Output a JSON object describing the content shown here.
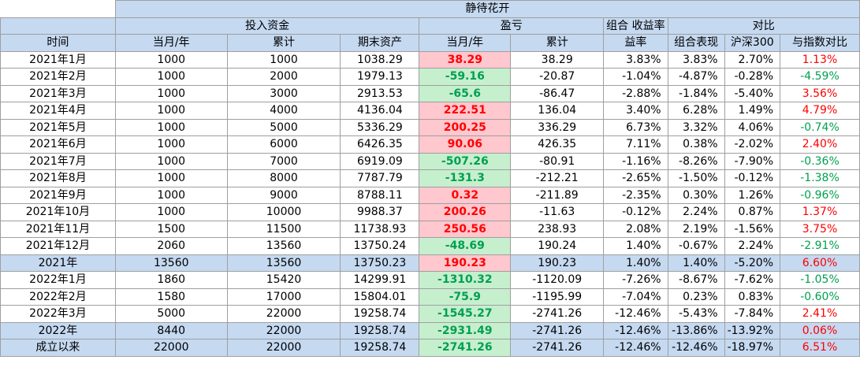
{
  "title": "静待花开",
  "group_headers": {
    "invest": "投入资金",
    "profit": "盈亏",
    "combo_return": "组合 收益率",
    "compare": "对比"
  },
  "columns": [
    "时间",
    "当月/年",
    "累计",
    "期末资产",
    "当月/年",
    "累计",
    "益率",
    "组合表现",
    "沪深300",
    "与指数对比"
  ],
  "colors": {
    "header_bg": "#c5d9f1",
    "pos_bg": "#ffc7ce",
    "neg_bg": "#c6efce",
    "red": "#ff0000",
    "green": "#00a050"
  },
  "rows": [
    {
      "time": "2021年1月",
      "inv_month": "1000",
      "inv_cum": "1000",
      "assets": "1038.29",
      "pl_month": "38.29",
      "pl_cum": "38.29",
      "ret": "3.83%",
      "perf": "3.83%",
      "hs300": "2.70%",
      "diff": "1.13%"
    },
    {
      "time": "2021年2月",
      "inv_month": "1000",
      "inv_cum": "2000",
      "assets": "1979.13",
      "pl_month": "-59.16",
      "pl_cum": "-20.87",
      "ret": "-1.04%",
      "perf": "-4.87%",
      "hs300": "-0.28%",
      "diff": "-4.59%"
    },
    {
      "time": "2021年3月",
      "inv_month": "1000",
      "inv_cum": "3000",
      "assets": "2913.53",
      "pl_month": "-65.6",
      "pl_cum": "-86.47",
      "ret": "-2.88%",
      "perf": "-1.84%",
      "hs300": "-5.40%",
      "diff": "3.56%"
    },
    {
      "time": "2021年4月",
      "inv_month": "1000",
      "inv_cum": "4000",
      "assets": "4136.04",
      "pl_month": "222.51",
      "pl_cum": "136.04",
      "ret": "3.40%",
      "perf": "6.28%",
      "hs300": "1.49%",
      "diff": "4.79%"
    },
    {
      "time": "2021年5月",
      "inv_month": "1000",
      "inv_cum": "5000",
      "assets": "5336.29",
      "pl_month": "200.25",
      "pl_cum": "336.29",
      "ret": "6.73%",
      "perf": "3.32%",
      "hs300": "4.06%",
      "diff": "-0.74%"
    },
    {
      "time": "2021年6月",
      "inv_month": "1000",
      "inv_cum": "6000",
      "assets": "6426.35",
      "pl_month": "90.06",
      "pl_cum": "426.35",
      "ret": "7.11%",
      "perf": "0.38%",
      "hs300": "-2.02%",
      "diff": "2.40%"
    },
    {
      "time": "2021年7月",
      "inv_month": "1000",
      "inv_cum": "7000",
      "assets": "6919.09",
      "pl_month": "-507.26",
      "pl_cum": "-80.91",
      "ret": "-1.16%",
      "perf": "-8.26%",
      "hs300": "-7.90%",
      "diff": "-0.36%"
    },
    {
      "time": "2021年8月",
      "inv_month": "1000",
      "inv_cum": "8000",
      "assets": "7787.79",
      "pl_month": "-131.3",
      "pl_cum": "-212.21",
      "ret": "-2.65%",
      "perf": "-1.50%",
      "hs300": "-0.12%",
      "diff": "-1.38%"
    },
    {
      "time": "2021年9月",
      "inv_month": "1000",
      "inv_cum": "9000",
      "assets": "8788.11",
      "pl_month": "0.32",
      "pl_cum": "-211.89",
      "ret": "-2.35%",
      "perf": "0.30%",
      "hs300": "1.26%",
      "diff": "-0.96%"
    },
    {
      "time": "2021年10月",
      "inv_month": "1000",
      "inv_cum": "10000",
      "assets": "9988.37",
      "pl_month": "200.26",
      "pl_cum": "-11.63",
      "ret": "-0.12%",
      "perf": "2.24%",
      "hs300": "0.87%",
      "diff": "1.37%"
    },
    {
      "time": "2021年11月",
      "inv_month": "1500",
      "inv_cum": "11500",
      "assets": "11738.93",
      "pl_month": "250.56",
      "pl_cum": "238.93",
      "ret": "2.08%",
      "perf": "2.19%",
      "hs300": "-1.56%",
      "diff": "3.75%"
    },
    {
      "time": "2021年12月",
      "inv_month": "2060",
      "inv_cum": "13560",
      "assets": "13750.24",
      "pl_month": "-48.69",
      "pl_cum": "190.24",
      "ret": "1.40%",
      "perf": "-0.67%",
      "hs300": "2.24%",
      "diff": "-2.91%"
    },
    {
      "time": "2021年",
      "inv_month": "13560",
      "inv_cum": "13560",
      "assets": "13750.23",
      "pl_month": "190.23",
      "pl_cum": "190.23",
      "ret": "1.40%",
      "perf": "1.40%",
      "hs300": "-5.20%",
      "diff": "6.60%",
      "summary": true
    },
    {
      "time": "2022年1月",
      "inv_month": "1860",
      "inv_cum": "15420",
      "assets": "14299.91",
      "pl_month": "-1310.32",
      "pl_cum": "-1120.09",
      "ret": "-7.26%",
      "perf": "-8.67%",
      "hs300": "-7.62%",
      "diff": "-1.05%"
    },
    {
      "time": "2022年2月",
      "inv_month": "1580",
      "inv_cum": "17000",
      "assets": "15804.01",
      "pl_month": "-75.9",
      "pl_cum": "-1195.99",
      "ret": "-7.04%",
      "perf": "0.23%",
      "hs300": "0.83%",
      "diff": "-0.60%"
    },
    {
      "time": "2022年3月",
      "inv_month": "5000",
      "inv_cum": "22000",
      "assets": "19258.74",
      "pl_month": "-1545.27",
      "pl_cum": "-2741.26",
      "ret": "-12.46%",
      "perf": "-5.43%",
      "hs300": "-7.84%",
      "diff": "2.41%"
    },
    {
      "time": "2022年",
      "inv_month": "8440",
      "inv_cum": "22000",
      "assets": "19258.74",
      "pl_month": "-2931.49",
      "pl_cum": "-2741.26",
      "ret": "-12.46%",
      "perf": "-13.86%",
      "hs300": "-13.92%",
      "diff": "0.06%",
      "summary": true
    },
    {
      "time": "成立以来",
      "inv_month": "22000",
      "inv_cum": "22000",
      "assets": "19258.74",
      "pl_month": "-2741.26",
      "pl_cum": "-2741.26",
      "ret": "-12.46%",
      "perf": "-12.46%",
      "hs300": "-18.97%",
      "diff": "6.51%",
      "summary": true
    }
  ],
  "chart_data": {
    "type": "table",
    "title": "静待花开",
    "columns": [
      "时间",
      "投入资金-当月/年",
      "投入资金-累计",
      "期末资产",
      "盈亏-当月/年",
      "盈亏-累计",
      "组合收益率",
      "组合表现",
      "沪深300",
      "与指数对比"
    ]
  }
}
